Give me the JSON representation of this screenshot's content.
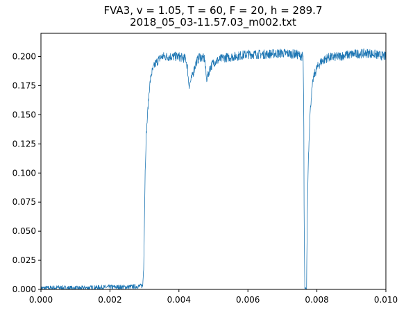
{
  "chart_data": {
    "type": "line",
    "title": "FVA3, v = 1.05, T = 60, F = 20, h = 289.7",
    "subtitle": "2018_05_03-11.57.03_m002.txt",
    "xlabel": "",
    "ylabel": "",
    "xlim": [
      0.0,
      0.01
    ],
    "ylim": [
      0.0,
      0.22
    ],
    "xticks": [
      "0.000",
      "0.002",
      "0.004",
      "0.006",
      "0.008",
      "0.010"
    ],
    "yticks": [
      "0.000",
      "0.025",
      "0.050",
      "0.075",
      "0.100",
      "0.125",
      "0.150",
      "0.175",
      "0.200"
    ],
    "grid": false,
    "line_color": "#1f77b4",
    "series": [
      {
        "x": [
          0.0,
          0.0005,
          0.001,
          0.0015,
          0.002,
          0.0025,
          0.00295,
          0.00298,
          0.003,
          0.00302,
          0.00305,
          0.0031,
          0.00315,
          0.0032,
          0.0033,
          0.0034,
          0.0035,
          0.0037,
          0.004,
          0.0042,
          0.00425,
          0.00428,
          0.0043,
          0.0044,
          0.0045,
          0.0046,
          0.00475,
          0.0048,
          0.0049,
          0.005,
          0.0053,
          0.0056,
          0.006,
          0.0065,
          0.007,
          0.0074,
          0.0076,
          0.00762,
          0.00763,
          0.00764,
          0.00765,
          0.00767,
          0.0077,
          0.00772,
          0.00775,
          0.0078,
          0.00785,
          0.0079,
          0.008,
          0.0081,
          0.0083,
          0.0086,
          0.009,
          0.0095,
          0.01
        ],
        "y": [
          0.001,
          0.0015,
          0.001,
          0.0015,
          0.002,
          0.002,
          0.003,
          0.02,
          0.06,
          0.1,
          0.13,
          0.155,
          0.175,
          0.185,
          0.193,
          0.197,
          0.2,
          0.2,
          0.2,
          0.198,
          0.19,
          0.178,
          0.175,
          0.185,
          0.195,
          0.2,
          0.198,
          0.18,
          0.19,
          0.195,
          0.199,
          0.2,
          0.202,
          0.202,
          0.203,
          0.202,
          0.2,
          0.15,
          0.06,
          0.025,
          0.0,
          0.0,
          0.0,
          0.06,
          0.11,
          0.15,
          0.17,
          0.182,
          0.19,
          0.195,
          0.199,
          0.2,
          0.202,
          0.203,
          0.2
        ]
      }
    ]
  }
}
